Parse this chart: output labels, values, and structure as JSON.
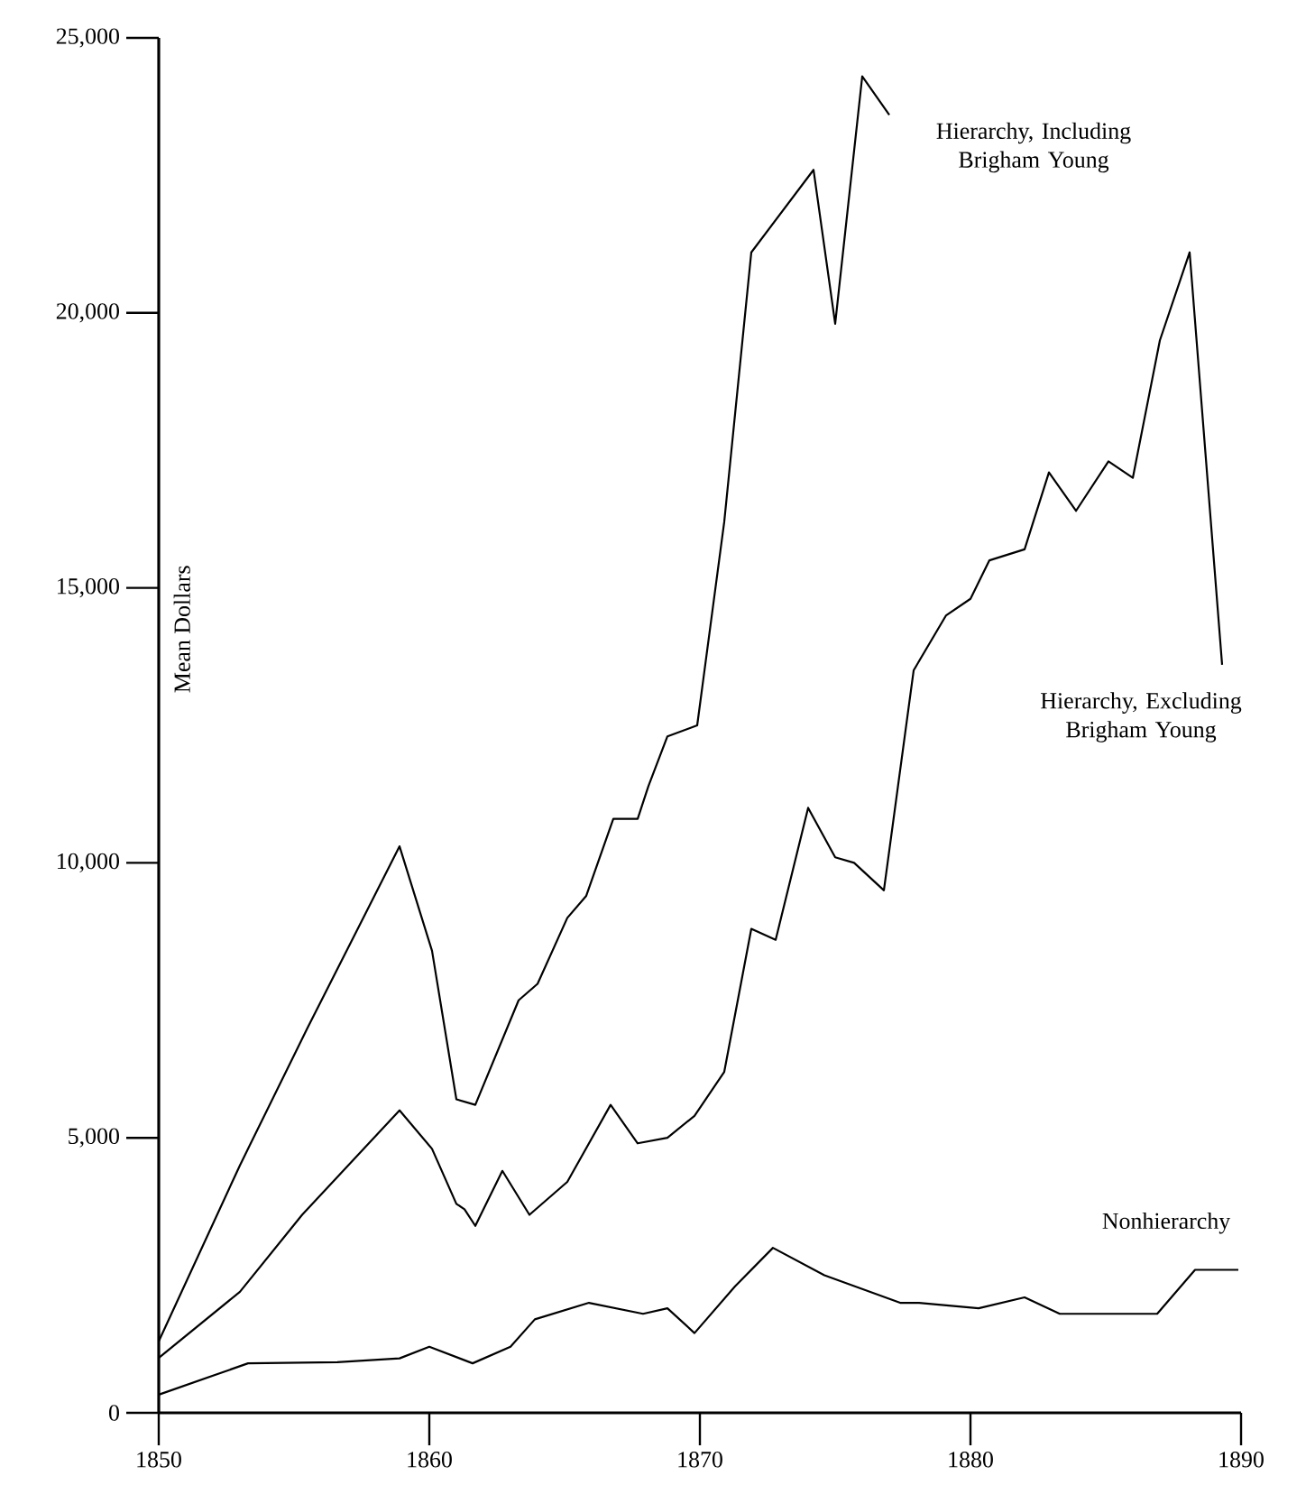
{
  "chart_data": {
    "type": "line",
    "ylabel": "Mean Dollars",
    "xlim": [
      1850,
      1890
    ],
    "ylim": [
      0,
      25000
    ],
    "xticks": [
      1850,
      1860,
      1870,
      1880,
      1890
    ],
    "yticks": [
      {
        "value": 0,
        "label": "0"
      },
      {
        "value": 5000,
        "label": "5,000"
      },
      {
        "value": 10000,
        "label": "10,000"
      },
      {
        "value": 15000,
        "label": "15,000"
      },
      {
        "value": 20000,
        "label": "20,000"
      },
      {
        "value": 25000,
        "label": "25,000"
      }
    ],
    "grid": false,
    "legend": false,
    "marker": "none",
    "line_style": "solid",
    "series": [
      {
        "name": "Hierarchy, Including Brigham Young",
        "color": "#000000",
        "x": [
          1850,
          1853,
          1855.5,
          1858.9,
          1860.1,
          1861,
          1861.7,
          1863.3,
          1864,
          1865.1,
          1865.8,
          1866.8,
          1867.7,
          1868.1,
          1868.8,
          1869.9,
          1870.9,
          1871.9,
          1874.2,
          1875,
          1876,
          1877
        ],
        "values": [
          1300,
          4500,
          7000,
          10300,
          8400,
          5700,
          5600,
          7500,
          7800,
          9000,
          9400,
          10800,
          10800,
          11400,
          12300,
          12500,
          16200,
          21100,
          22600,
          19800,
          24300,
          23600
        ]
      },
      {
        "name": "Hierarchy, Excluding Brigham Young",
        "color": "#000000",
        "x": [
          1850,
          1853,
          1855.3,
          1858.9,
          1860.1,
          1861,
          1861.3,
          1861.7,
          1862.7,
          1863.7,
          1865.1,
          1866.7,
          1867.7,
          1868.8,
          1869.8,
          1870.9,
          1871.9,
          1872.8,
          1874,
          1875,
          1875.7,
          1876.8,
          1877.9,
          1879.1,
          1880,
          1880.7,
          1882,
          1882.9,
          1883.9,
          1885.1,
          1886,
          1887,
          1888.1,
          1889.3
        ],
        "values": [
          1000,
          2200,
          3600,
          5500,
          4800,
          3800,
          3700,
          3400,
          4400,
          3600,
          4200,
          5600,
          4900,
          5000,
          5400,
          6200,
          8800,
          8600,
          11000,
          10100,
          10000,
          9500,
          13500,
          14500,
          14800,
          15500,
          15700,
          17100,
          16400,
          17300,
          17000,
          19500,
          21100,
          13600
        ]
      },
      {
        "name": "Nonhierarchy",
        "color": "#000000",
        "x": [
          1850,
          1853.3,
          1856.6,
          1858.9,
          1860,
          1861.6,
          1863,
          1863.9,
          1865.9,
          1867.9,
          1868.8,
          1869.8,
          1871.3,
          1872.7,
          1874.6,
          1877.4,
          1878.1,
          1880.3,
          1882,
          1883.3,
          1886.9,
          1888.3,
          1889.9
        ],
        "values": [
          330,
          900,
          920,
          990,
          1200,
          900,
          1200,
          1700,
          2000,
          1800,
          1900,
          1450,
          2300,
          3000,
          2500,
          2000,
          2000,
          1900,
          2100,
          1800,
          1800,
          2600,
          2600
        ]
      }
    ]
  }
}
